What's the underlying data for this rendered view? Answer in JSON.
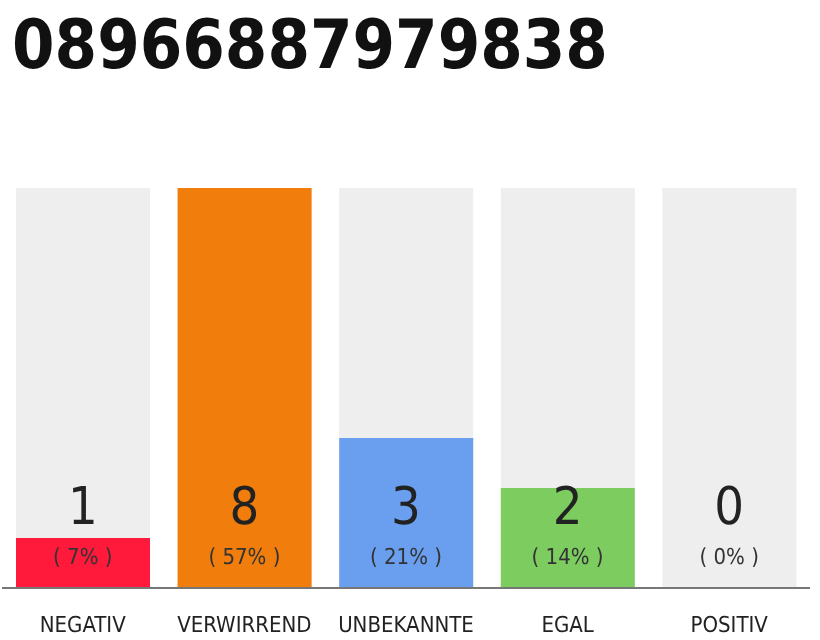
{
  "chart_data": {
    "type": "bar",
    "title": "08966887979838",
    "categories": [
      "NEGATIV",
      "VERWIRREND",
      "UNBEKANNTE",
      "EGAL",
      "POSITIV"
    ],
    "values": [
      1,
      8,
      3,
      2,
      0
    ],
    "colors": [
      "#ff1a3c",
      "#f07d0c",
      "#6a9ff0",
      "#7ccc60",
      "#c8c8c8"
    ],
    "data_labels": true,
    "annotations": [
      "( 7% )",
      "( 57% )",
      "( 21% )",
      "( 14% )",
      "( 0% )"
    ],
    "grid": false,
    "legend": false
  }
}
